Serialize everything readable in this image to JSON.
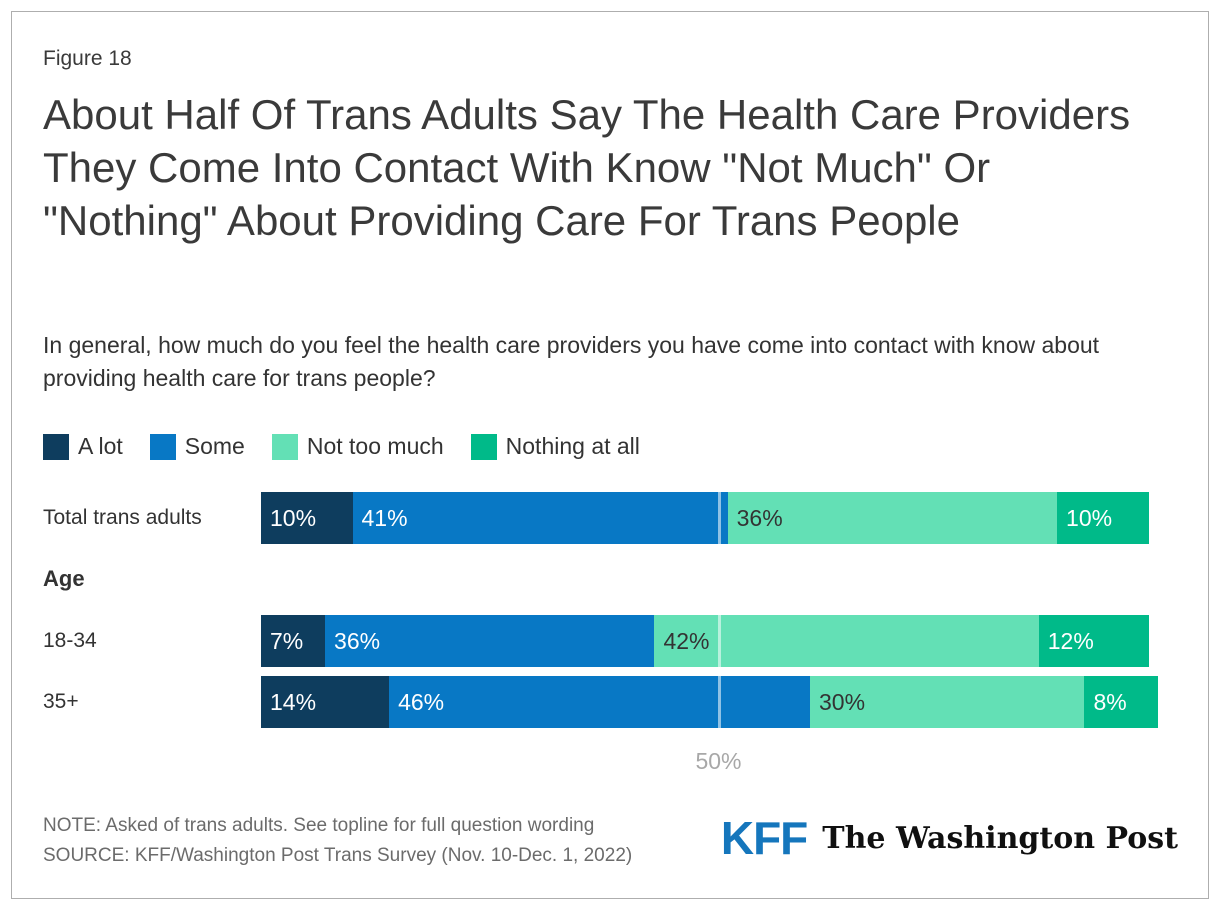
{
  "figure_label": "Figure 18",
  "title": "About Half Of Trans Adults Say The Health Care Providers They Come Into Contact With Know \"Not Much\" Or \"Nothing\" About Providing Care For Trans People",
  "subtitle": "In general, how much do you feel the health care providers you have come into contact with know about providing health care for trans people?",
  "legend": [
    {
      "label": "A lot",
      "color": "#0e3d5e"
    },
    {
      "label": "Some",
      "color": "#0878c5"
    },
    {
      "label": "Not too much",
      "color": "#63e0b5"
    },
    {
      "label": "Nothing at all",
      "color": "#00ba89"
    }
  ],
  "group_header": "Age",
  "axis": {
    "tick_label": "50%",
    "tick_value": 50,
    "xlim": [
      0,
      100
    ]
  },
  "chart_data": {
    "type": "bar",
    "orientation": "horizontal-stacked",
    "title": "About Half Of Trans Adults Say The Health Care Providers They Come Into Contact With Know \"Not Much\" Or \"Nothing\" About Providing Care For Trans People",
    "categories": [
      "Total trans adults",
      "18-34",
      "35+"
    ],
    "category_groups": [
      null,
      "Age",
      "Age"
    ],
    "series": [
      {
        "name": "A lot",
        "color": "#0e3d5e",
        "label_color": "#ffffff",
        "values": [
          10,
          7,
          14
        ]
      },
      {
        "name": "Some",
        "color": "#0878c5",
        "label_color": "#ffffff",
        "values": [
          41,
          36,
          46
        ]
      },
      {
        "name": "Not too much",
        "color": "#63e0b5",
        "label_color": "#333333",
        "values": [
          36,
          42,
          30
        ]
      },
      {
        "name": "Nothing at all",
        "color": "#00ba89",
        "label_color": "#ffffff",
        "values": [
          10,
          12,
          8
        ]
      }
    ],
    "value_label_format": "{v}%",
    "xlim": [
      0,
      100
    ],
    "gridline_at": 50,
    "legend_position": "top",
    "xlabel": "",
    "ylabel": ""
  },
  "note": "NOTE: Asked of trans adults. See topline for full question wording",
  "source": "SOURCE: KFF/Washington Post Trans Survey (Nov. 10-Dec. 1, 2022)",
  "logos": {
    "kff": "KFF",
    "washington_post": "The Washington Post"
  },
  "colors": {
    "a_lot": "#0e3d5e",
    "some": "#0878c5",
    "not_too_much": "#63e0b5",
    "nothing_at_all": "#00ba89",
    "kff_blue": "#1576bc",
    "text_dark": "#3a3a3a",
    "footer_gray": "#6b6b6b",
    "axis_gray": "#a8a8a8",
    "card_border": "#aeaeae"
  }
}
